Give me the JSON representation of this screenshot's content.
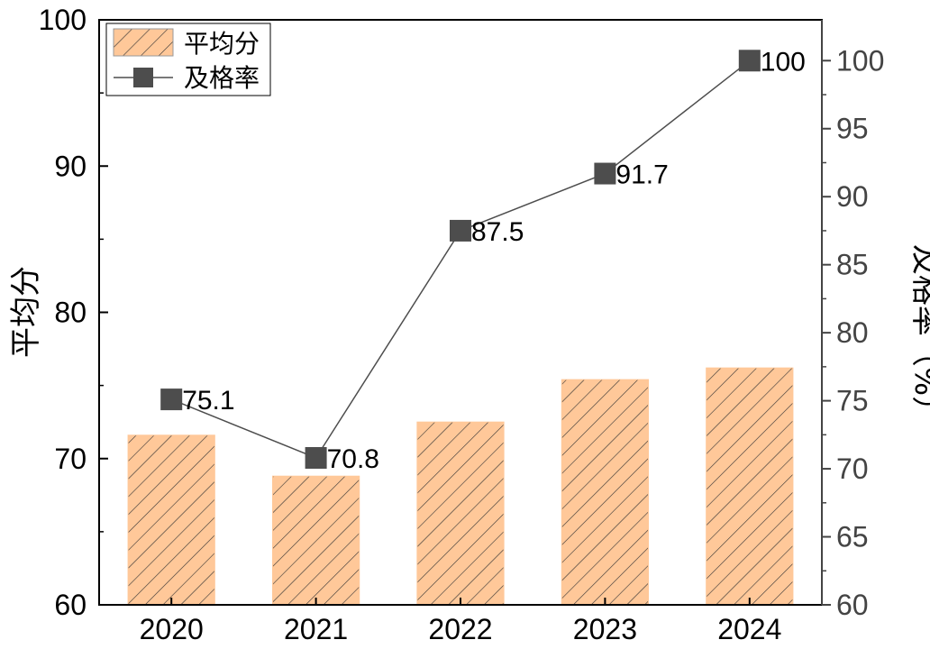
{
  "chart_data": {
    "type": "bar",
    "categories": [
      "2020",
      "2021",
      "2022",
      "2023",
      "2024"
    ],
    "series": [
      {
        "name": "平均分",
        "type": "bar",
        "axis": "left",
        "values": [
          71.6,
          68.8,
          72.5,
          75.4,
          76.2
        ],
        "color": "#ffc899",
        "pattern": "diagonal-hatch"
      },
      {
        "name": "及格率",
        "type": "line",
        "axis": "right",
        "values": [
          75.1,
          70.8,
          87.5,
          91.7,
          100
        ],
        "labels": [
          "75.1",
          "70.8",
          "87.5",
          "91.7",
          "100"
        ],
        "color": "#4d4d4d",
        "marker": "square"
      }
    ],
    "ylabel": "平均分",
    "ylim": [
      60,
      100
    ],
    "yticks": [
      "60",
      "70",
      "80",
      "90",
      "100"
    ],
    "y2label": "及格率（%）",
    "y2lim": [
      60,
      103
    ],
    "y2ticks": [
      "60",
      "65",
      "70",
      "75",
      "80",
      "85",
      "90",
      "95",
      "100"
    ],
    "legend_position": "top-left",
    "grid": false
  }
}
